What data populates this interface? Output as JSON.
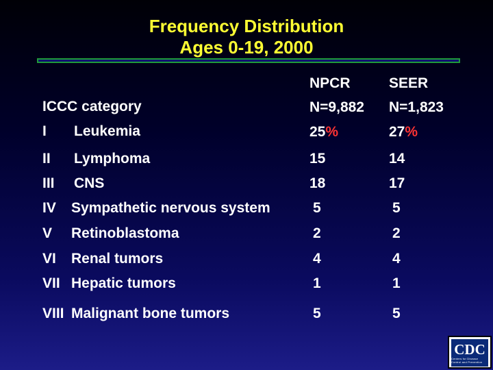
{
  "title": {
    "line1": "Frequency Distribution",
    "line2": "Ages 0-19, 2000"
  },
  "header": {
    "category": "ICCC category",
    "npcr": "NPCR",
    "npcr_n": "N=9,882",
    "seer": "SEER",
    "seer_n": "N=1,823"
  },
  "rows": [
    {
      "num": "I",
      "name": "Leukemia",
      "npcr": "25",
      "seer": "27",
      "pct_sign": "%"
    },
    {
      "num": "II",
      "name": "Lymphoma",
      "npcr": "15",
      "seer": "14"
    },
    {
      "num": "III",
      "name": "CNS",
      "npcr": "18",
      "seer": "17"
    },
    {
      "num": "IV",
      "name": "Sympathetic nervous system",
      "npcr": "5",
      "seer": "5"
    },
    {
      "num": "V",
      "name": "Retinoblastoma",
      "npcr": "2",
      "seer": "2"
    },
    {
      "num": "VI",
      "name": "Renal tumors",
      "npcr": "4",
      "seer": "4"
    },
    {
      "num": "VII",
      "name": "Hepatic tumors",
      "npcr": "1",
      "seer": "1"
    },
    {
      "num": "VIII",
      "name": "Malignant bone tumors",
      "npcr": "5",
      "seer": "5"
    }
  ],
  "logo": {
    "text": "CDC",
    "subtext": "Centers for Disease Control and Prevention"
  },
  "colors": {
    "title": "#ffff33",
    "text": "#ffffff",
    "percent": "#ff3333",
    "rule_border": "#1f9a3a"
  }
}
